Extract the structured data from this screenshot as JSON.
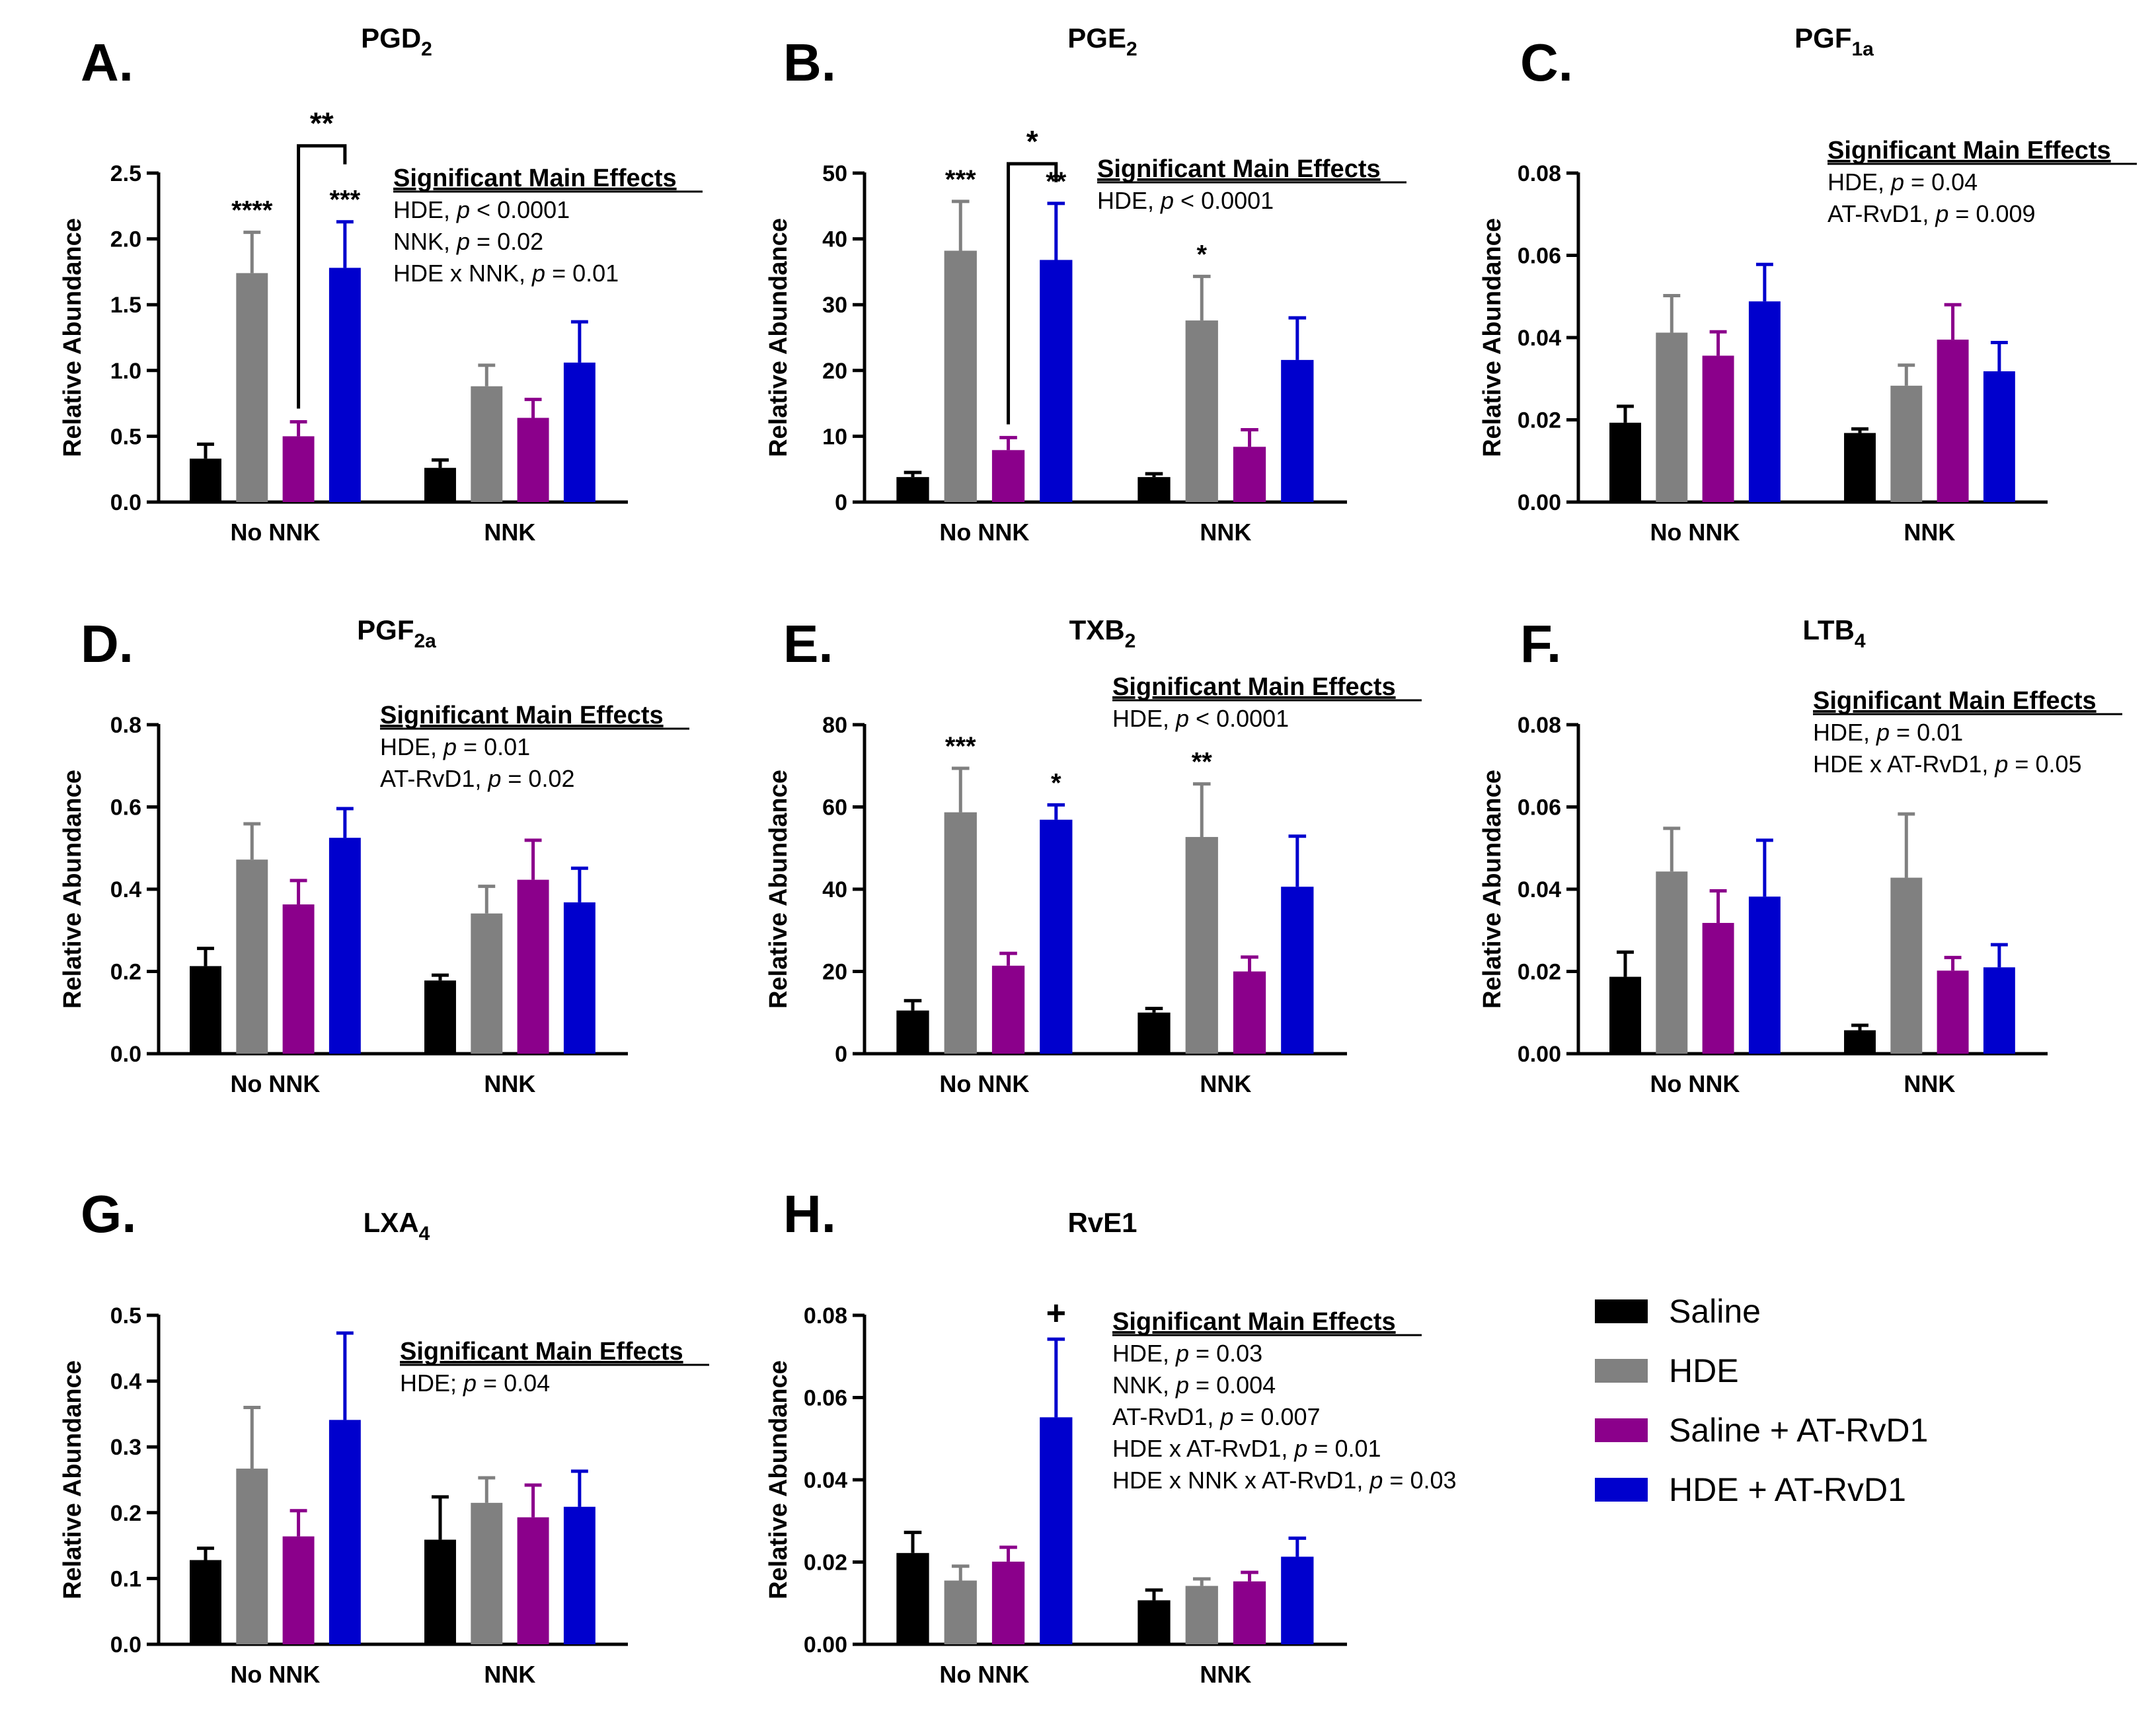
{
  "legend": {
    "items": [
      {
        "label": "Saline",
        "color": "#000000"
      },
      {
        "label": "HDE",
        "color": "#808080"
      },
      {
        "label": "Saline + AT-RvD1",
        "color": "#8b008b"
      },
      {
        "label": "HDE + AT-RvD1",
        "color": "#0000cd"
      }
    ]
  },
  "chart_data": [
    {
      "panel": "A.",
      "title": "PGD",
      "title_sub": "2",
      "type": "bar",
      "ylabel": "Relative Abundance",
      "ylim": [
        0,
        2.5
      ],
      "yticks": [
        "0.0",
        "0.5",
        "1.0",
        "1.5",
        "2.0",
        "2.5"
      ],
      "categories": [
        "No NNK",
        "NNK"
      ],
      "series": [
        {
          "name": "Saline",
          "values": [
            0.33,
            0.26
          ],
          "errors": [
            0.11,
            0.06
          ]
        },
        {
          "name": "HDE",
          "values": [
            1.74,
            0.88
          ],
          "errors": [
            0.31,
            0.16
          ]
        },
        {
          "name": "Saline + AT-RvD1",
          "values": [
            0.5,
            0.64
          ],
          "errors": [
            0.11,
            0.14
          ]
        },
        {
          "name": "HDE + AT-RvD1",
          "values": [
            1.78,
            1.06
          ],
          "errors": [
            0.35,
            0.31
          ]
        }
      ],
      "stars": [
        {
          "text": "****",
          "group": 0,
          "series": 1
        },
        {
          "text": "***",
          "group": 0,
          "series": 3
        }
      ],
      "bracket": {
        "text": "**",
        "group": 0,
        "from": 2,
        "to": 3
      },
      "effects": {
        "heading": "Significant Main Effects",
        "lines": [
          [
            "HDE, ",
            "p",
            " < 0.0001"
          ],
          [
            "NNK, ",
            "p",
            " = 0.02"
          ],
          [
            "HDE x NNK, ",
            "p",
            " = 0.01"
          ]
        ]
      }
    },
    {
      "panel": "B.",
      "title": "PGE",
      "title_sub": "2",
      "type": "bar",
      "ylabel": "Relative Abundance",
      "ylim": [
        0,
        50
      ],
      "yticks": [
        "0",
        "10",
        "20",
        "30",
        "40",
        "50"
      ],
      "categories": [
        "No NNK",
        "NNK"
      ],
      "series": [
        {
          "name": "Saline",
          "values": [
            3.8,
            3.8
          ],
          "errors": [
            0.7,
            0.5
          ]
        },
        {
          "name": "HDE",
          "values": [
            38.2,
            27.6
          ],
          "errors": [
            7.5,
            6.7
          ]
        },
        {
          "name": "Saline + AT-RvD1",
          "values": [
            7.9,
            8.4
          ],
          "errors": [
            1.9,
            2.6
          ]
        },
        {
          "name": "HDE + AT-RvD1",
          "values": [
            36.8,
            21.6
          ],
          "errors": [
            8.6,
            6.4
          ]
        }
      ],
      "stars": [
        {
          "text": "***",
          "group": 0,
          "series": 1
        },
        {
          "text": "**",
          "group": 0,
          "series": 3
        },
        {
          "text": "*",
          "group": 1,
          "series": 1
        }
      ],
      "bracket": {
        "text": "*",
        "group": 0,
        "from": 2,
        "to": 3
      },
      "effects": {
        "heading": "Significant Main Effects",
        "lines": [
          [
            "HDE, ",
            "p",
            " < 0.0001"
          ]
        ]
      }
    },
    {
      "panel": "C.",
      "title": "PGF",
      "title_sub": "1a",
      "type": "bar",
      "ylabel": "Relative Abundance",
      "ylim": [
        0,
        0.08
      ],
      "yticks": [
        "0.00",
        "0.02",
        "0.04",
        "0.06",
        "0.08"
      ],
      "categories": [
        "No NNK",
        "NNK"
      ],
      "series": [
        {
          "name": "Saline",
          "values": [
            0.0193,
            0.0168
          ],
          "errors": [
            0.004,
            0.001
          ]
        },
        {
          "name": "HDE",
          "values": [
            0.0412,
            0.0283
          ],
          "errors": [
            0.009,
            0.005
          ]
        },
        {
          "name": "Saline + AT-RvD1",
          "values": [
            0.0356,
            0.0395
          ],
          "errors": [
            0.0058,
            0.0085
          ]
        },
        {
          "name": "HDE + AT-RvD1",
          "values": [
            0.0488,
            0.0318
          ],
          "errors": [
            0.009,
            0.007
          ]
        }
      ],
      "stars": [],
      "effects": {
        "heading": "Significant Main Effects",
        "lines": [
          [
            "HDE, ",
            "p",
            " = 0.04"
          ],
          [
            "AT-RvD1, ",
            "p",
            " = 0.009"
          ]
        ]
      }
    },
    {
      "panel": "D.",
      "title": "PGF",
      "title_sub": "2a",
      "type": "bar",
      "ylabel": "Relative Abundance",
      "ylim": [
        0,
        0.8
      ],
      "yticks": [
        "0.0",
        "0.2",
        "0.4",
        "0.6",
        "0.8"
      ],
      "categories": [
        "No NNK",
        "NNK"
      ],
      "series": [
        {
          "name": "Saline",
          "values": [
            0.213,
            0.178
          ],
          "errors": [
            0.043,
            0.013
          ]
        },
        {
          "name": "HDE",
          "values": [
            0.472,
            0.341
          ],
          "errors": [
            0.087,
            0.066
          ]
        },
        {
          "name": "Saline + AT-RvD1",
          "values": [
            0.363,
            0.423
          ],
          "errors": [
            0.058,
            0.096
          ]
        },
        {
          "name": "HDE + AT-RvD1",
          "values": [
            0.525,
            0.368
          ],
          "errors": [
            0.071,
            0.083
          ]
        }
      ],
      "stars": [],
      "effects": {
        "heading": "Significant Main Effects",
        "lines": [
          [
            "HDE, ",
            "p",
            " = 0.01"
          ],
          [
            "AT-RvD1, ",
            "p",
            " = 0.02"
          ]
        ]
      }
    },
    {
      "panel": "E.",
      "title": "TXB",
      "title_sub": "2",
      "type": "bar",
      "ylabel": "Relative Abundance",
      "ylim": [
        0,
        80
      ],
      "yticks": [
        "0",
        "20",
        "40",
        "60",
        "80"
      ],
      "categories": [
        "No NNK",
        "NNK"
      ],
      "series": [
        {
          "name": "Saline",
          "values": [
            10.5,
            10.0
          ],
          "errors": [
            2.4,
            1.0
          ]
        },
        {
          "name": "HDE",
          "values": [
            58.7,
            52.7
          ],
          "errors": [
            10.7,
            12.9
          ]
        },
        {
          "name": "Saline + AT-RvD1",
          "values": [
            21.4,
            20.0
          ],
          "errors": [
            3.0,
            3.5
          ]
        },
        {
          "name": "HDE + AT-RvD1",
          "values": [
            56.9,
            40.6
          ],
          "errors": [
            3.6,
            12.3
          ]
        }
      ],
      "stars": [
        {
          "text": "***",
          "group": 0,
          "series": 1
        },
        {
          "text": "*",
          "group": 0,
          "series": 3
        },
        {
          "text": "**",
          "group": 1,
          "series": 1
        }
      ],
      "effects": {
        "heading": "Significant Main Effects",
        "lines": [
          [
            "HDE, ",
            "p",
            " < 0.0001"
          ]
        ]
      }
    },
    {
      "panel": "F.",
      "title": "LTB",
      "title_sub": "4",
      "type": "bar",
      "ylabel": "Relative Abundance",
      "ylim": [
        0,
        0.08
      ],
      "yticks": [
        "0.00",
        "0.02",
        "0.04",
        "0.06",
        "0.08"
      ],
      "categories": [
        "No NNK",
        "NNK"
      ],
      "series": [
        {
          "name": "Saline",
          "values": [
            0.0187,
            0.0057
          ],
          "errors": [
            0.006,
            0.0012
          ]
        },
        {
          "name": "HDE",
          "values": [
            0.0443,
            0.0428
          ],
          "errors": [
            0.0105,
            0.0155
          ]
        },
        {
          "name": "Saline + AT-RvD1",
          "values": [
            0.0318,
            0.0202
          ],
          "errors": [
            0.0078,
            0.0032
          ]
        },
        {
          "name": "HDE + AT-RvD1",
          "values": [
            0.0382,
            0.021
          ],
          "errors": [
            0.0137,
            0.0055
          ]
        }
      ],
      "stars": [],
      "effects": {
        "heading": "Significant Main Effects",
        "lines": [
          [
            "HDE, ",
            "p",
            " = 0.01"
          ],
          [
            "HDE x AT-RvD1, ",
            "p",
            " = 0.05"
          ]
        ]
      }
    },
    {
      "panel": "G.",
      "title": "LXA",
      "title_sub": "4",
      "type": "bar",
      "ylabel": "Relative Abundance",
      "ylim": [
        0,
        0.5
      ],
      "yticks": [
        "0.0",
        "0.1",
        "0.2",
        "0.3",
        "0.4",
        "0.5"
      ],
      "categories": [
        "No NNK",
        "NNK"
      ],
      "series": [
        {
          "name": "Saline",
          "values": [
            0.128,
            0.159
          ],
          "errors": [
            0.018,
            0.065
          ]
        },
        {
          "name": "HDE",
          "values": [
            0.267,
            0.215
          ],
          "errors": [
            0.093,
            0.038
          ]
        },
        {
          "name": "Saline + AT-RvD1",
          "values": [
            0.164,
            0.193
          ],
          "errors": [
            0.039,
            0.049
          ]
        },
        {
          "name": "HDE + AT-RvD1",
          "values": [
            0.341,
            0.209
          ],
          "errors": [
            0.132,
            0.054
          ]
        }
      ],
      "stars": [],
      "effects": {
        "heading": "Significant Main Effects",
        "lines": [
          [
            "HDE; ",
            "p",
            " = 0.04"
          ]
        ]
      }
    },
    {
      "panel": "H.",
      "title": "RvE1",
      "title_sub": "",
      "type": "bar",
      "ylabel": "Relative Abundance",
      "ylim": [
        0,
        0.08
      ],
      "yticks": [
        "0.00",
        "0.02",
        "0.04",
        "0.06",
        "0.08"
      ],
      "categories": [
        "No NNK",
        "NNK"
      ],
      "series": [
        {
          "name": "Saline",
          "values": [
            0.0222,
            0.0107
          ],
          "errors": [
            0.005,
            0.0025
          ]
        },
        {
          "name": "HDE",
          "values": [
            0.0155,
            0.0142
          ],
          "errors": [
            0.0035,
            0.0017
          ]
        },
        {
          "name": "Saline + AT-RvD1",
          "values": [
            0.0201,
            0.0153
          ],
          "errors": [
            0.0035,
            0.0022
          ]
        },
        {
          "name": "HDE + AT-RvD1",
          "values": [
            0.0552,
            0.0213
          ],
          "errors": [
            0.019,
            0.0045
          ]
        }
      ],
      "stars": [
        {
          "text": "+",
          "group": 0,
          "series": 3
        }
      ],
      "effects": {
        "heading": "Significant Main Effects",
        "lines": [
          [
            "HDE, ",
            "p",
            " = 0.03"
          ],
          [
            "NNK, ",
            "p",
            " = 0.004"
          ],
          [
            "AT-RvD1, ",
            "p",
            " = 0.007"
          ],
          [
            "HDE x AT-RvD1, ",
            "p",
            " = 0.01"
          ],
          [
            "HDE x NNK x  AT-RvD1, ",
            "p",
            " = 0.03"
          ]
        ]
      }
    }
  ]
}
